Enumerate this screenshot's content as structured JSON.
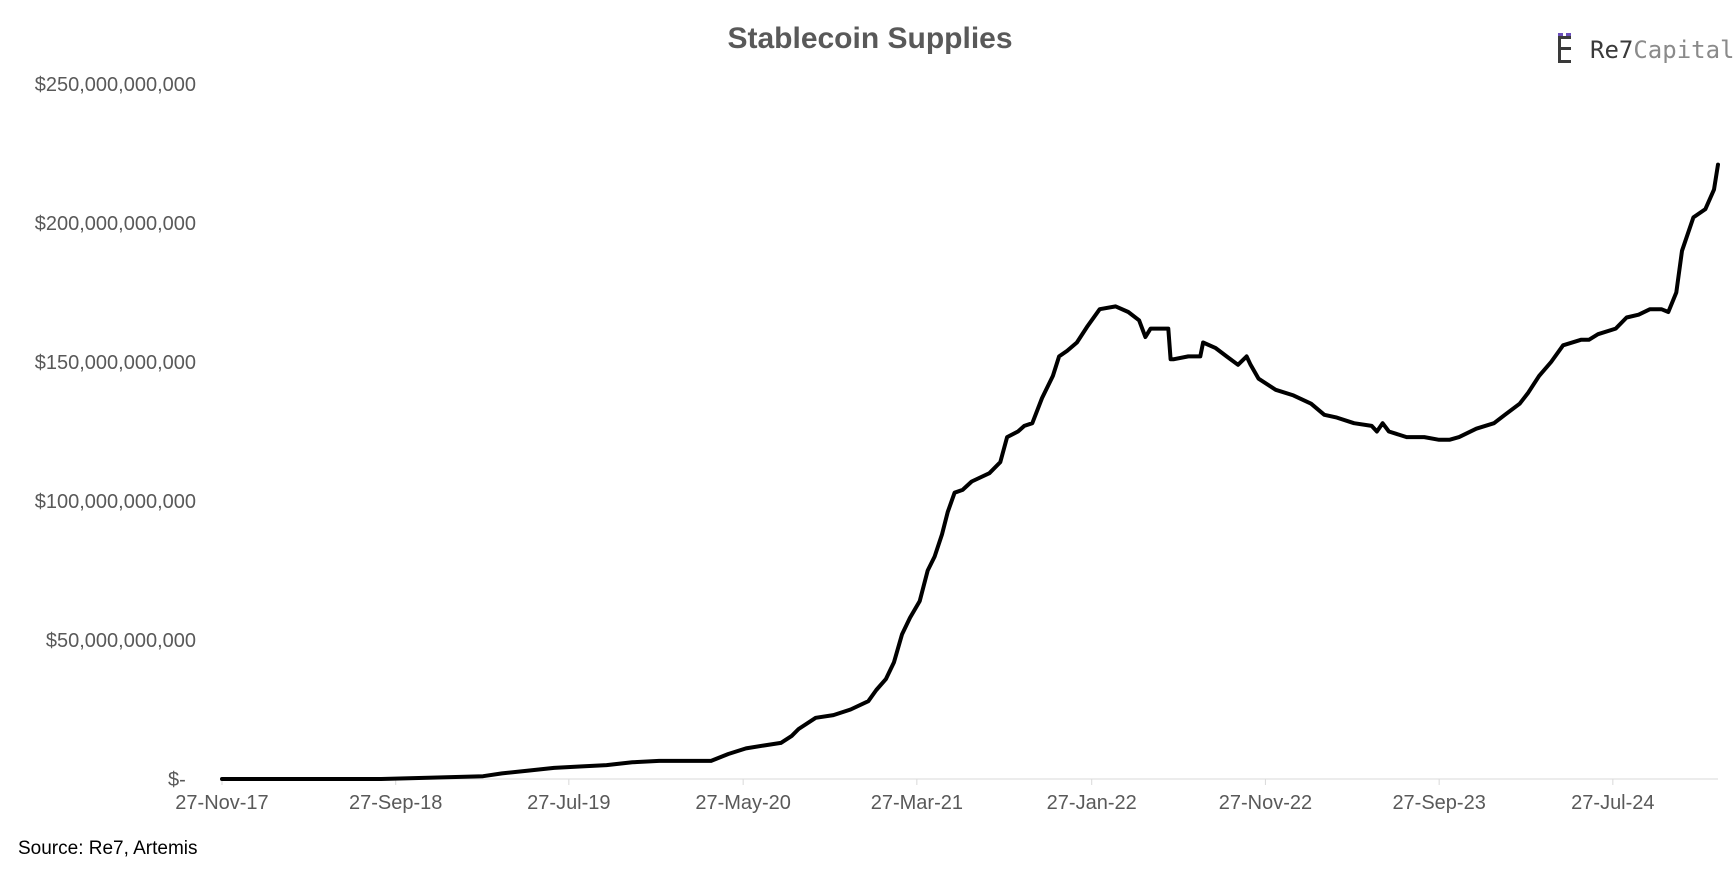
{
  "logo": {
    "part1": "Re7",
    "part2": "Capital",
    "colors": {
      "dark": "#3a3a3a",
      "light": "#8a8a8a",
      "accent": "#6b4fbb"
    }
  },
  "source": "Source: Re7,  Artemis",
  "chart_data": {
    "type": "line",
    "title": "Stablecoin Supplies",
    "xlabel": "",
    "ylabel": "",
    "ylim": [
      0,
      250000000000
    ],
    "y_ticks": [
      {
        "value": 0,
        "label": "$-"
      },
      {
        "value": 50000000000,
        "label": "$50,000,000,000"
      },
      {
        "value": 100000000000,
        "label": "$100,000,000,000"
      },
      {
        "value": 150000000000,
        "label": "$150,000,000,000"
      },
      {
        "value": 200000000000,
        "label": "$200,000,000,000"
      },
      {
        "value": 250000000000,
        "label": "$250,000,000,000"
      }
    ],
    "x_range": [
      "2017-11-27",
      "2025-01-27"
    ],
    "x_ticks": [
      {
        "date": "2017-11-27",
        "label": "27-Nov-17"
      },
      {
        "date": "2018-09-27",
        "label": "27-Sep-18"
      },
      {
        "date": "2019-07-27",
        "label": "27-Jul-19"
      },
      {
        "date": "2020-05-27",
        "label": "27-May-20"
      },
      {
        "date": "2021-03-27",
        "label": "27-Mar-21"
      },
      {
        "date": "2022-01-27",
        "label": "27-Jan-22"
      },
      {
        "date": "2022-11-27",
        "label": "27-Nov-22"
      },
      {
        "date": "2023-09-27",
        "label": "27-Sep-23"
      },
      {
        "date": "2024-07-27",
        "label": "27-Jul-24"
      }
    ],
    "line_color": "#000000",
    "grid": false,
    "legend": "none",
    "series": [
      {
        "x": [
          "2017-11-27",
          "2018-03-01",
          "2018-06-01",
          "2018-09-01",
          "2018-12-01",
          "2019-02-27",
          "2019-04-01",
          "2019-05-15",
          "2019-07-01",
          "2019-08-15",
          "2019-10-01",
          "2019-11-15",
          "2020-01-01",
          "2020-03-01",
          "2020-04-01",
          "2020-05-01",
          "2020-06-01",
          "2020-07-01",
          "2020-08-01",
          "2020-08-20",
          "2020-09-01",
          "2020-10-01",
          "2020-11-01",
          "2020-12-01",
          "2021-01-01",
          "2021-01-15",
          "2021-02-01",
          "2021-02-15",
          "2021-03-01",
          "2021-03-15",
          "2021-04-01",
          "2021-04-15",
          "2021-04-27",
          "2021-05-10",
          "2021-05-20",
          "2021-06-01",
          "2021-06-15",
          "2021-07-01",
          "2021-08-01",
          "2021-08-20",
          "2021-09-01",
          "2021-09-20",
          "2021-10-01",
          "2021-10-15",
          "2021-11-01",
          "2021-11-20",
          "2021-12-01",
          "2021-12-15",
          "2022-01-01",
          "2022-01-20",
          "2022-02-10",
          "2022-03-10",
          "2022-04-01",
          "2022-04-20",
          "2022-05-01",
          "2022-05-10",
          "2022-05-20",
          "2022-06-10",
          "2022-06-14",
          "2022-06-20",
          "2022-07-15",
          "2022-08-05",
          "2022-08-10",
          "2022-09-01",
          "2022-09-20",
          "2022-10-10",
          "2022-10-25",
          "2022-11-01",
          "2022-11-15",
          "2022-12-15",
          "2023-01-15",
          "2023-02-15",
          "2023-03-10",
          "2023-04-01",
          "2023-05-01",
          "2023-06-01",
          "2023-06-10",
          "2023-06-20",
          "2023-07-01",
          "2023-08-01",
          "2023-09-01",
          "2023-09-27",
          "2023-10-15",
          "2023-11-01",
          "2023-12-01",
          "2024-01-01",
          "2024-01-20",
          "2024-02-15",
          "2024-03-01",
          "2024-03-20",
          "2024-04-10",
          "2024-05-01",
          "2024-06-01",
          "2024-06-15",
          "2024-07-01",
          "2024-08-01",
          "2024-08-20",
          "2024-09-10",
          "2024-09-30",
          "2024-10-20",
          "2024-11-01",
          "2024-11-15",
          "2024-11-25",
          "2024-12-15",
          "2025-01-05",
          "2025-01-20",
          "2025-01-27"
        ],
        "y": [
          0,
          0,
          0,
          0,
          500000000,
          1000000000,
          2000000000,
          3000000000,
          4000000000,
          4500000000,
          5000000000,
          6000000000,
          6500000000,
          6500000000,
          6500000000,
          9000000000,
          11000000000,
          12000000000,
          13000000000,
          15500000000,
          18000000000,
          22000000000,
          23000000000,
          25000000000,
          28000000000,
          32000000000,
          36000000000,
          42000000000,
          52000000000,
          58000000000,
          64000000000,
          75000000000,
          80000000000,
          88000000000,
          96000000000,
          103000000000,
          104000000000,
          107000000000,
          110000000000,
          114000000000,
          123000000000,
          125000000000,
          127000000000,
          128000000000,
          137000000000,
          145000000000,
          152000000000,
          154000000000,
          157000000000,
          163000000000,
          169000000000,
          170000000000,
          168000000000,
          165000000000,
          159000000000,
          162000000000,
          162000000000,
          162000000000,
          151000000000,
          151000000000,
          152000000000,
          152000000000,
          157000000000,
          155000000000,
          152000000000,
          149000000000,
          152000000000,
          149000000000,
          144000000000,
          140000000000,
          138000000000,
          135000000000,
          131000000000,
          130000000000,
          128000000000,
          127000000000,
          125000000000,
          128000000000,
          125000000000,
          123000000000,
          123000000000,
          122000000000,
          122000000000,
          123000000000,
          126000000000,
          128000000000,
          131000000000,
          135000000000,
          139000000000,
          145000000000,
          150000000000,
          156000000000,
          158000000000,
          158000000000,
          160000000000,
          162000000000,
          166000000000,
          167000000000,
          169000000000,
          169000000000,
          168000000000,
          175000000000,
          190000000000,
          202000000000,
          205000000000,
          212000000000,
          221000000000
        ]
      }
    ]
  }
}
